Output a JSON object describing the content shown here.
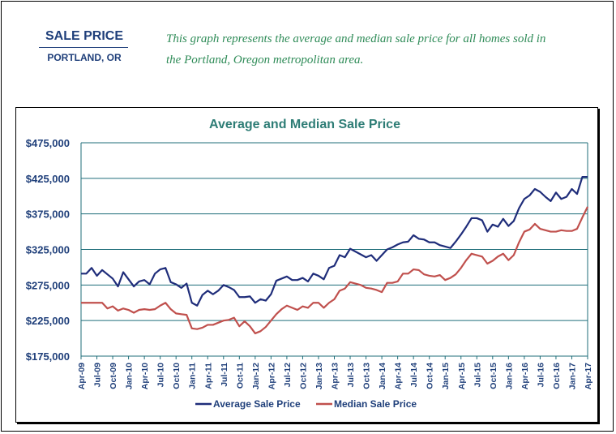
{
  "header": {
    "title": "SALE PRICE",
    "subtitle": "PORTLAND, OR",
    "description_line1": "This graph represents the average and median sale price for all homes sold in",
    "description_line2": "the Portland, Oregon metropolitan area."
  },
  "colors": {
    "header_text": "#1f3f7a",
    "description_text": "#2e8b57",
    "chart_title": "#2e7d76",
    "average_line": "#1f2d7a",
    "median_line": "#c0504d",
    "grid": "#1f6e7a"
  },
  "chart_data": {
    "type": "line",
    "title": "Average and Median Sale Price",
    "xlabel": "",
    "ylabel": "",
    "ylim": [
      175000,
      475000
    ],
    "y_ticks": [
      "$175,000",
      "$225,000",
      "$275,000",
      "$325,000",
      "$375,000",
      "$425,000",
      "$475,000"
    ],
    "y_tick_values": [
      175000,
      225000,
      275000,
      325000,
      375000,
      425000,
      475000
    ],
    "x_tick_labels": [
      "Apr-09",
      "Jul-09",
      "Oct-09",
      "Jan-10",
      "Apr-10",
      "Jul-10",
      "Oct-10",
      "Jan-11",
      "Apr-11",
      "Jul-11",
      "Oct-11",
      "Jan-12",
      "Apr-12",
      "Jul-12",
      "Oct-12",
      "Jan-13",
      "Apr-13",
      "Jul-13",
      "Oct-13",
      "Jan-14",
      "Apr-14",
      "Jul-14",
      "Oct-14",
      "Jan-15",
      "Apr-15",
      "Jul-15",
      "Oct-15",
      "Jan-16",
      "Apr-16",
      "Jul-16",
      "Oct-16",
      "Jan-17",
      "Apr-17"
    ],
    "grid": true,
    "legend_position": "bottom",
    "series": [
      {
        "name": "Average Sale Price",
        "values": [
          291000,
          291000,
          299000,
          288000,
          296000,
          290000,
          284000,
          273000,
          293000,
          283000,
          273000,
          280000,
          282000,
          276000,
          291000,
          297000,
          299000,
          279000,
          276000,
          271000,
          277000,
          250000,
          246000,
          261000,
          267000,
          262000,
          267000,
          275000,
          272000,
          268000,
          258000,
          258000,
          259000,
          250000,
          255000,
          253000,
          262000,
          281000,
          284000,
          287000,
          282000,
          282000,
          285000,
          280000,
          291000,
          288000,
          283000,
          299000,
          302000,
          317000,
          314000,
          326000,
          322000,
          318000,
          314000,
          317000,
          309000,
          317000,
          325000,
          328000,
          332000,
          335000,
          336000,
          345000,
          340000,
          339000,
          335000,
          335000,
          331000,
          329000,
          327000,
          336000,
          346000,
          357000,
          369000,
          369000,
          366000,
          350000,
          360000,
          357000,
          368000,
          358000,
          365000,
          383000,
          396000,
          401000,
          410000,
          406000,
          399000,
          393000,
          405000,
          396000,
          399000,
          410000,
          403000,
          427000,
          427000
        ]
      },
      {
        "name": "Median Sale Price",
        "values": [
          250000,
          250000,
          250000,
          250000,
          250000,
          242000,
          245000,
          239000,
          242000,
          240000,
          236000,
          240000,
          241000,
          240000,
          241000,
          246000,
          250000,
          241000,
          235000,
          234000,
          233000,
          214000,
          213000,
          215000,
          219000,
          219000,
          222000,
          225000,
          226000,
          229000,
          217000,
          224000,
          217000,
          207000,
          210000,
          216000,
          225000,
          234000,
          241000,
          246000,
          243000,
          240000,
          245000,
          243000,
          250000,
          250000,
          243000,
          250000,
          255000,
          267000,
          270000,
          279000,
          277000,
          275000,
          271000,
          270000,
          268000,
          265000,
          278000,
          278000,
          280000,
          291000,
          291000,
          297000,
          296000,
          290000,
          288000,
          287000,
          289000,
          282000,
          285000,
          290000,
          299000,
          310000,
          319000,
          317000,
          315000,
          305000,
          309000,
          315000,
          319000,
          310000,
          317000,
          335000,
          350000,
          353000,
          361000,
          354000,
          352000,
          350000,
          350000,
          352000,
          351000,
          351000,
          354000,
          370000,
          385000
        ]
      }
    ]
  }
}
